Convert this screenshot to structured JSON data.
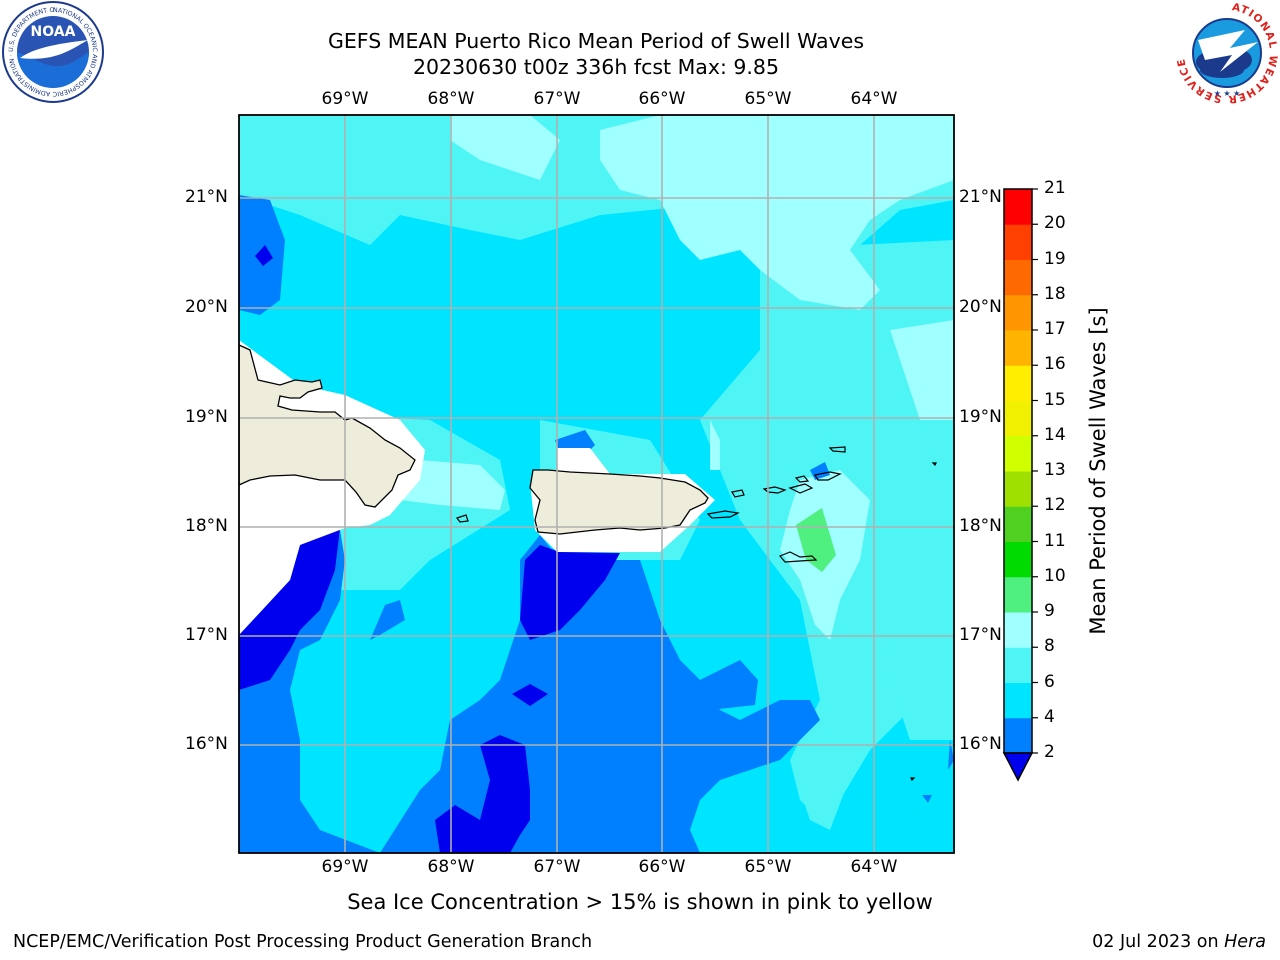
{
  "header": {
    "title_line1": "GEFS MEAN Puerto Rico Mean Period of Swell Waves",
    "title_line2": "20230630 t00z 336h fcst   Max: 9.85"
  },
  "logos": {
    "left": {
      "name": "noaa-logo",
      "text": "NOAA",
      "ring_text": "NATIONAL OCEANIC AND ATMOSPHERIC ADMINISTRATION · U.S. DEPARTMENT OF COMMERCE"
    },
    "right": {
      "name": "nws-logo",
      "ring_text": "NATIONAL WEATHER SERVICE"
    }
  },
  "map": {
    "lon_labels": [
      "69°W",
      "68°W",
      "67°W",
      "66°W",
      "65°W",
      "64°W"
    ],
    "lat_labels": [
      "21°N",
      "20°N",
      "19°N",
      "18°N",
      "17°N",
      "16°N"
    ],
    "lon_range": [
      -70,
      -63.25
    ],
    "lat_range": [
      15,
      21.75
    ],
    "grid": true,
    "land_color": "#eeeddc",
    "coast_color": "#000000",
    "field": "Mean Period of Swell Waves"
  },
  "colorbar": {
    "label": "Mean Period of Swell Waves [s]",
    "ticks": [
      "2",
      "4",
      "6",
      "8",
      "9",
      "10",
      "11",
      "12",
      "13",
      "14",
      "15",
      "16",
      "17",
      "18",
      "19",
      "20",
      "21"
    ],
    "bins": [
      {
        "lo": 2,
        "hi": 4,
        "color": "#0080ff"
      },
      {
        "lo": 4,
        "hi": 6,
        "color": "#00e5ff"
      },
      {
        "lo": 6,
        "hi": 8,
        "color": "#4ff5f5"
      },
      {
        "lo": 8,
        "hi": 9,
        "color": "#a0ffff"
      },
      {
        "lo": 9,
        "hi": 10,
        "color": "#50f080"
      },
      {
        "lo": 10,
        "hi": 11,
        "color": "#00dc00"
      },
      {
        "lo": 11,
        "hi": 12,
        "color": "#50d020"
      },
      {
        "lo": 12,
        "hi": 13,
        "color": "#a0e000"
      },
      {
        "lo": 13,
        "hi": 14,
        "color": "#d0ff00"
      },
      {
        "lo": 14,
        "hi": 15,
        "color": "#f0f000"
      },
      {
        "lo": 15,
        "hi": 16,
        "color": "#ffee00"
      },
      {
        "lo": 16,
        "hi": 17,
        "color": "#ffb400"
      },
      {
        "lo": 17,
        "hi": 18,
        "color": "#ff9600"
      },
      {
        "lo": 18,
        "hi": 19,
        "color": "#ff6a00"
      },
      {
        "lo": 19,
        "hi": 20,
        "color": "#ff4000"
      },
      {
        "lo": 20,
        "hi": 21,
        "color": "#ff0000"
      }
    ],
    "under_color": "#0000ee"
  },
  "caption": "Sea Ice Concentration > 15% is shown in pink to yellow",
  "footer": {
    "left": "NCEP/EMC/Verification Post Processing Product Generation Branch",
    "right_prefix": "02 Jul 2023 on ",
    "right_machine": "Hera"
  }
}
